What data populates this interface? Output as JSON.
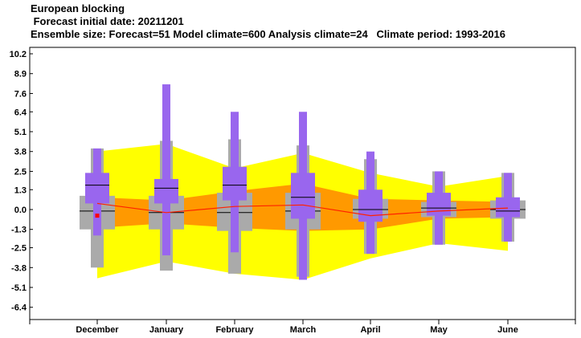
{
  "title": "European blocking",
  "subtitle1": " Forecast initial date: 20211201",
  "subtitle2": "Ensemble size: Forecast=51 Model climate=600 Analysis climate=24   Climate period: 1993-2016",
  "colors": {
    "climate_outer": "#ffff00",
    "climate_inner": "#ff9900",
    "climate_median": "#ff2200",
    "forecast_box": "#9966ee",
    "analysis_box": "#aaaaaa",
    "median_line": "#000000",
    "analysis_point": "#ff0000"
  },
  "chart_data": {
    "type": "boxplot",
    "categories": [
      "December",
      "January",
      "February",
      "March",
      "April",
      "May",
      "June"
    ],
    "yticks": [
      "10.2",
      "8.9",
      "7.6",
      "6.4",
      "5.1",
      "3.8",
      "2.5",
      "1.3",
      "0.0",
      "-1.3",
      "-2.5",
      "-3.8",
      "-5.1",
      "-6.4"
    ],
    "ylim": [
      -7.4,
      10.8
    ],
    "model_climate": {
      "outer_upper": [
        3.8,
        4.3,
        2.7,
        3.7,
        2.4,
        1.5,
        2.2
      ],
      "outer_lower": [
        -4.5,
        -3.4,
        -4.2,
        -4.6,
        -3.2,
        -2.2,
        -2.7
      ],
      "inner_upper": [
        0.8,
        0.6,
        1.2,
        1.7,
        0.7,
        0.6,
        0.5
      ],
      "inner_lower": [
        -1.2,
        -0.9,
        -1.2,
        -1.4,
        -1.3,
        -0.6,
        -0.5
      ],
      "median": [
        0.4,
        -0.2,
        0.2,
        0.3,
        -0.4,
        -0.1,
        0.1
      ]
    },
    "forecast": [
      {
        "min": -1.7,
        "p10": -1.7,
        "p25": 0.4,
        "median": 1.6,
        "p75": 2.4,
        "p90": 4.0,
        "max": 4.0
      },
      {
        "min": -3.0,
        "p10": -3.0,
        "p25": 0.4,
        "median": 1.4,
        "p75": 2.0,
        "p90": 4.5,
        "max": 8.2
      },
      {
        "min": -2.8,
        "p10": -2.8,
        "p25": 0.6,
        "median": 1.6,
        "p75": 2.8,
        "p90": 4.6,
        "max": 6.4
      },
      {
        "min": -4.6,
        "p10": -4.2,
        "p25": -0.6,
        "median": 0.8,
        "p75": 2.4,
        "p90": 4.2,
        "max": 6.4
      },
      {
        "min": -2.9,
        "p10": -2.9,
        "p25": -0.8,
        "median": 0.0,
        "p75": 1.3,
        "p90": 3.8,
        "max": 3.8
      },
      {
        "min": -2.3,
        "p10": -2.3,
        "p25": -0.4,
        "median": 0.1,
        "p75": 1.1,
        "p90": 2.5,
        "max": 2.5
      },
      {
        "min": -2.1,
        "p10": -2.1,
        "p25": -0.5,
        "median": -0.1,
        "p75": 0.8,
        "p90": 2.4,
        "max": 2.4
      }
    ],
    "analysis_climate": [
      {
        "p10": -3.8,
        "p25": -1.3,
        "median": -0.1,
        "p75": 0.9,
        "p90": 4.0
      },
      {
        "p10": -4.0,
        "p25": -1.3,
        "median": -0.2,
        "p75": 0.9,
        "p90": 4.5
      },
      {
        "p10": -4.2,
        "p25": -1.4,
        "median": -0.2,
        "p75": 1.1,
        "p90": 4.6
      },
      {
        "p10": -4.4,
        "p25": -1.3,
        "median": -0.1,
        "p75": 1.1,
        "p90": 4.2
      },
      {
        "p10": -2.9,
        "p25": -0.6,
        "median": 0.0,
        "p75": 0.7,
        "p90": 3.3
      },
      {
        "p10": -2.3,
        "p25": -0.5,
        "median": 0.1,
        "p75": 0.5,
        "p90": 2.5
      },
      {
        "p10": -2.1,
        "p25": -0.6,
        "median": 0.0,
        "p75": 0.6,
        "p90": 2.4
      }
    ],
    "analysis_point": {
      "category": "December",
      "value": -0.4
    }
  }
}
